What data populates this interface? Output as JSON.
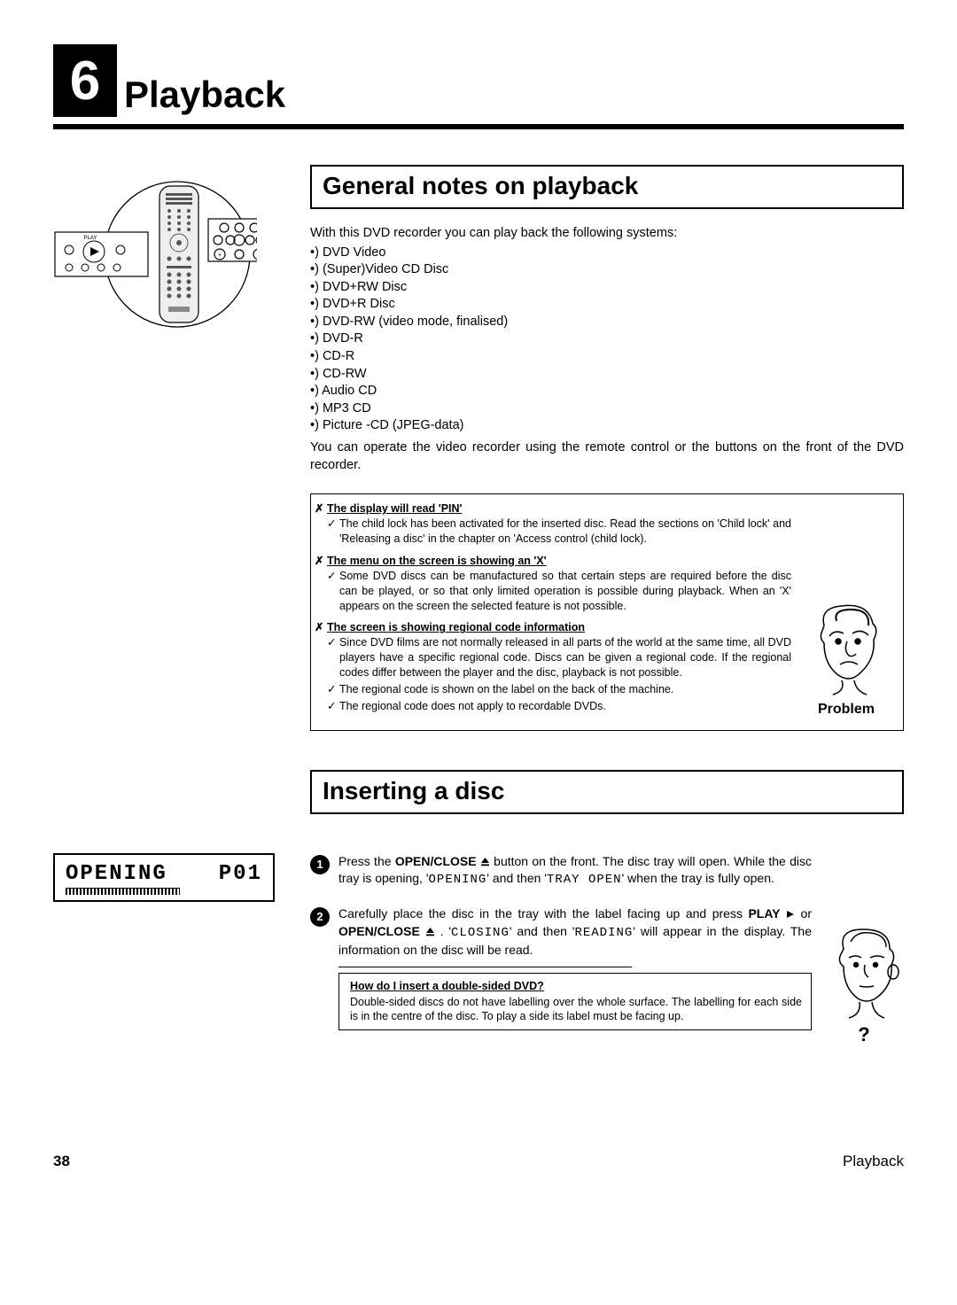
{
  "chapter": {
    "number": "6",
    "title": "Playback"
  },
  "section1": {
    "heading": "General notes on playback",
    "intro": "With this DVD recorder you can play back the following systems:",
    "systems": [
      "DVD Video",
      "(Super)Video CD Disc",
      "DVD+RW Disc",
      "DVD+R Disc",
      "DVD-RW (video mode, finalised)",
      "DVD-R",
      "CD-R",
      "CD-RW",
      "Audio CD",
      "MP3 CD",
      "Picture -CD (JPEG-data)"
    ],
    "postText": "You can operate the video recorder using the remote control or the buttons on the front of the DVD recorder."
  },
  "problem": {
    "label": "Problem",
    "items": [
      {
        "title": "The display will read 'PIN'",
        "checks": [
          "The child lock has been activated for the inserted disc. Read the sections on 'Child lock' and 'Releasing a disc' in the chapter on 'Access control (child lock)."
        ]
      },
      {
        "title": "The menu on the screen is showing an 'X'",
        "checks": [
          "Some DVD discs can be manufactured so that certain steps are required before the disc can be played, or so that only limited operation is possible during playback. When an 'X' appears on the screen the selected feature is not possible."
        ]
      },
      {
        "title": "The screen is showing regional code information",
        "checks": [
          "Since DVD films are not normally released in all parts of the world at the same time, all DVD players have a specific regional code. Discs can be given a regional code. If the regional codes differ between the player and the disc, playback is not possible.",
          "The regional code is shown on the label on the back of the machine.",
          "The regional code does not apply to recordable DVDs."
        ]
      }
    ]
  },
  "section2": {
    "heading": "Inserting a disc",
    "display": {
      "line1a": "OPENING",
      "line1b": "P01"
    },
    "step1": {
      "pre": "Press the ",
      "btn": "OPEN/CLOSE",
      "mid": " button on the front. The disc tray will open. While the disc tray is opening, '",
      "lcd1": "OPENING",
      "mid2": "' and then '",
      "lcd2": "TRAY OPEN",
      "post": "' when the tray is fully open."
    },
    "step2": {
      "pre": "Carefully place the disc in the tray with the label facing up and press ",
      "btn1": "PLAY",
      "mid1": " or ",
      "btn2": "OPEN/CLOSE",
      "mid2": " . '",
      "lcd1": "CLOSING",
      "mid3": "' and then '",
      "lcd2": "READING",
      "post": "' will appear in the display. The information on the disc will be read."
    },
    "tip": {
      "title": "How do I insert a double-sided DVD?",
      "body": "Double-sided discs do not have labelling over the whole surface. The labelling for each side is in the centre of the disc. To play a side its label must be facing up."
    },
    "qmark": "?"
  },
  "footer": {
    "page": "38",
    "label": "Playback"
  }
}
